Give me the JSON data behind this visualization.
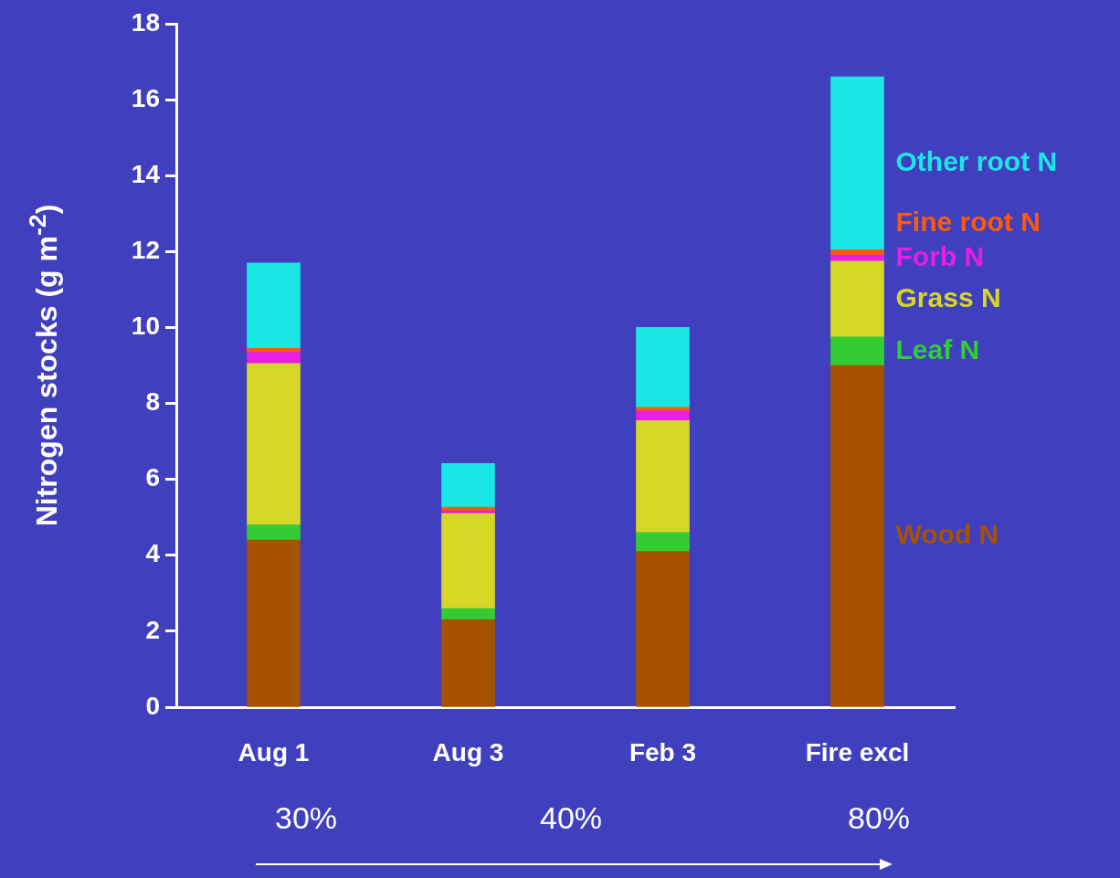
{
  "chart_data": {
    "type": "bar",
    "stacked": true,
    "ylabel": "Nitrogen stocks (g m$^{-2}$)",
    "categories": [
      "Aug 1",
      "Aug 3",
      "Feb 3",
      "Fire excl"
    ],
    "series": [
      {
        "name": "Wood N",
        "color": "#a65200",
        "values": [
          4.4,
          2.3,
          4.1,
          9.0
        ]
      },
      {
        "name": "Leaf N",
        "color": "#33cc33",
        "values": [
          0.4,
          0.3,
          0.5,
          0.75
        ]
      },
      {
        "name": "Grass N",
        "color": "#d6d626",
        "values": [
          4.25,
          2.5,
          2.95,
          2.0
        ]
      },
      {
        "name": "Forb N",
        "color": "#e61ee6",
        "values": [
          0.3,
          0.07,
          0.25,
          0.15
        ]
      },
      {
        "name": "Fine root N",
        "color": "#ff5a0a",
        "values": [
          0.1,
          0.1,
          0.1,
          0.15
        ]
      },
      {
        "name": "Other root N",
        "color": "#1ae6e6",
        "values": [
          2.25,
          1.15,
          2.1,
          4.55
        ]
      }
    ],
    "ylim": [
      0,
      18
    ],
    "yticks": [
      0,
      2,
      4,
      6,
      8,
      10,
      12,
      14,
      16,
      18
    ],
    "grid": false,
    "legend": "right",
    "annotations": [
      "30%",
      "40%",
      "80%"
    ]
  }
}
